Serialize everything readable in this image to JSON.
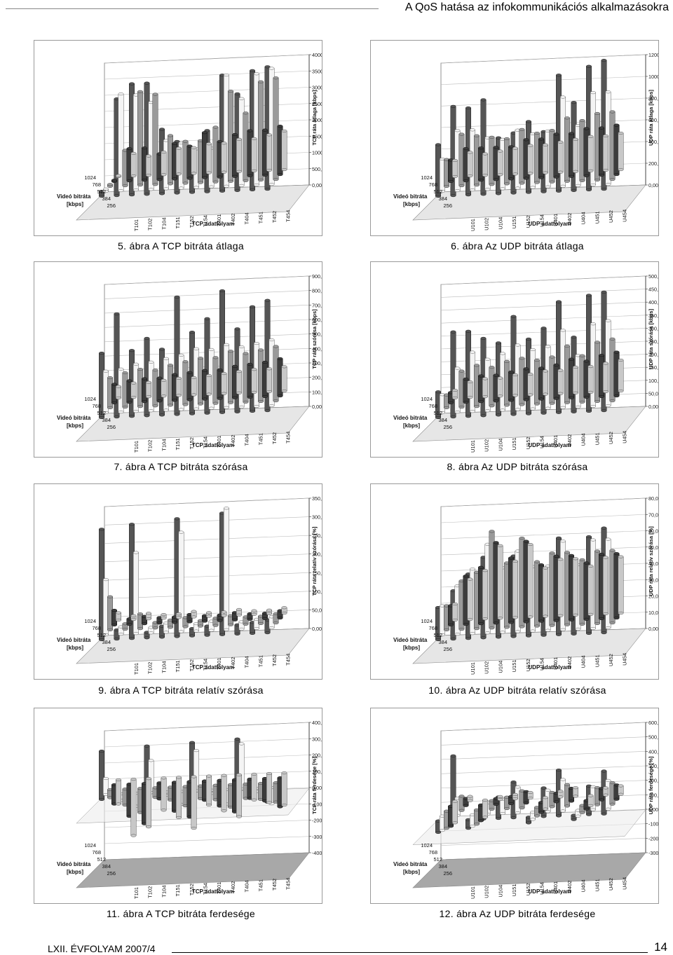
{
  "header": {
    "title": "A QoS hatása az infokommunikációs alkalmazásokra"
  },
  "footer": {
    "volume": "LXII. ÉVFOLYAM 2007/4",
    "page": "14"
  },
  "common": {
    "video_title": "Videó bitráta",
    "video_unit": "[kbps]",
    "bitrates": [
      "1024",
      "768",
      "512",
      "384",
      "256"
    ]
  },
  "charts": [
    {
      "caption": "5. ábra A TCP bitráta átlaga",
      "flows": [
        "T101",
        "T102",
        "T104",
        "T151",
        "T152",
        "T154",
        "T401",
        "T402",
        "T404",
        "T451",
        "T452",
        "T454"
      ],
      "flow_axis_label": "TCP adatfolyam",
      "value_axis_label": "TCP ráta átlaga [kbps]",
      "ticks": [
        "0,00",
        "500,00",
        "1000,00",
        "1500,00",
        "2000,00",
        "2500,00",
        "3000,00",
        "3500,00",
        "4000,00"
      ],
      "min": 0,
      "max": 4000,
      "has_negative": false,
      "values": [
        [
          150,
          3000,
          3450,
          3450,
          2000,
          1600,
          1100,
          1900,
          3600,
          3000,
          3700,
          3800
        ],
        [
          70,
          3000,
          2950,
          2700,
          1500,
          1400,
          1200,
          1200,
          3450,
          2700,
          3450,
          3600
        ],
        [
          60,
          1100,
          2900,
          2800,
          1500,
          1300,
          1300,
          1700,
          2800,
          2100,
          3050,
          3150
        ],
        [
          40,
          1000,
          1000,
          800,
          1100,
          1000,
          1400,
          1100,
          1300,
          1400,
          1400,
          1500
        ],
        [
          30,
          700,
          600,
          700,
          800,
          800,
          900,
          900,
          1000,
          1000,
          1100,
          1200
        ]
      ],
      "chart_data": {
        "type": "bar",
        "xlabel": "TCP adatfolyam",
        "ylabel": "TCP ráta átlaga [kbps]",
        "ylim": [
          0,
          4000
        ]
      }
    },
    {
      "caption": "6. ábra Az UDP bitráta átlaga",
      "flows": [
        "U101",
        "U102",
        "U104",
        "U151",
        "U152",
        "U154",
        "U401",
        "U402",
        "U404",
        "U451",
        "U452",
        "U454"
      ],
      "flow_axis_label": "UDP adatfolyam",
      "value_axis_label": "UDP ráta átlaga [kbps]",
      "ticks": [
        "0,00",
        "200,00",
        "400,00",
        "600,00",
        "800,00",
        "1000,00",
        "1200,00"
      ],
      "min": 0,
      "max": 1200,
      "has_negative": false,
      "values": [
        [
          480,
          830,
          810,
          880,
          520,
          560,
          660,
          560,
          1080,
          820,
          1150,
          1200
        ],
        [
          300,
          560,
          560,
          480,
          460,
          540,
          500,
          520,
          830,
          560,
          860,
          860
        ],
        [
          250,
          480,
          460,
          440,
          420,
          500,
          460,
          480,
          590,
          560,
          620,
          630
        ],
        [
          200,
          300,
          300,
          300,
          300,
          360,
          360,
          400,
          400,
          440,
          440,
          460
        ],
        [
          150,
          220,
          200,
          220,
          240,
          260,
          260,
          280,
          300,
          320,
          320,
          340
        ]
      ],
      "chart_data": {
        "type": "bar",
        "xlabel": "UDP adatfolyam",
        "ylabel": "UDP ráta átlaga [kbps]",
        "ylim": [
          0,
          1200
        ]
      }
    },
    {
      "caption": "7. ábra A TCP bitráta szórása",
      "flows": [
        "T101",
        "T102",
        "T104",
        "T151",
        "T152",
        "T154",
        "T401",
        "T402",
        "T404",
        "T451",
        "T452",
        "T454"
      ],
      "flow_axis_label": "TCP adatfolyam",
      "value_axis_label": "TCP ráta szórása [kbps]",
      "ticks": [
        "0,00",
        "100,00",
        "200,00",
        "300,00",
        "400,00",
        "500,00",
        "600,00",
        "700,00",
        "800,00",
        "900,00"
      ],
      "min": 0,
      "max": 900,
      "has_negative": false,
      "values": [
        [
          450,
          720,
          460,
          540,
          460,
          820,
          570,
          660,
          850,
          580,
          730,
          770
        ],
        [
          290,
          300,
          330,
          340,
          360,
          380,
          420,
          410,
          440,
          420,
          440,
          460
        ],
        [
          210,
          240,
          260,
          250,
          280,
          300,
          320,
          320,
          360,
          340,
          360,
          380
        ],
        [
          130,
          150,
          160,
          160,
          180,
          190,
          200,
          200,
          220,
          230,
          240,
          260
        ],
        [
          80,
          100,
          100,
          110,
          120,
          120,
          130,
          140,
          150,
          160,
          160,
          170
        ]
      ],
      "chart_data": {
        "type": "bar",
        "xlabel": "TCP adatfolyam",
        "ylabel": "TCP ráta szórása [kbps]",
        "ylim": [
          0,
          900
        ]
      }
    },
    {
      "caption": "8. ábra Az UDP bitráta szórása",
      "flows": [
        "U101",
        "U102",
        "U104",
        "U151",
        "U152",
        "U154",
        "U401",
        "U402",
        "U404",
        "U451",
        "U452",
        "U454"
      ],
      "flow_axis_label": "UDP adatfolyam",
      "value_axis_label": "UDP ráta szórása [kbps]",
      "ticks": [
        "0,00",
        "50,00",
        "100,00",
        "150,00",
        "200,00",
        "250,00",
        "300,00",
        "350,00",
        "400,00",
        "450,00",
        "500,00"
      ],
      "min": 0,
      "max": 500,
      "has_negative": false,
      "values": [
        [
          100,
          330,
          330,
          300,
          280,
          380,
          290,
          330,
          430,
          290,
          450,
          460
        ],
        [
          70,
          170,
          230,
          200,
          220,
          250,
          230,
          240,
          300,
          200,
          320,
          330
        ],
        [
          50,
          140,
          160,
          150,
          170,
          180,
          170,
          180,
          220,
          180,
          230,
          240
        ],
        [
          40,
          90,
          100,
          100,
          110,
          120,
          120,
          130,
          150,
          140,
          160,
          170
        ],
        [
          30,
          60,
          70,
          70,
          80,
          80,
          90,
          90,
          100,
          100,
          110,
          120
        ]
      ],
      "chart_data": {
        "type": "bar",
        "xlabel": "UDP adatfolyam",
        "ylabel": "UDP ráta szórása [kbps]",
        "ylim": [
          0,
          500
        ]
      }
    },
    {
      "caption": "9. ábra A TCP bitráta relatív szórása",
      "flows": [
        "T101",
        "T102",
        "T104",
        "T151",
        "T152",
        "T154",
        "T401",
        "T402",
        "T404",
        "T451",
        "T452",
        "T454"
      ],
      "flow_axis_label": "TCP adatfolyam",
      "value_axis_label": "TCP ráta relatív szórása [%]",
      "ticks": [
        "0,00%",
        "50,00%",
        "100,00%",
        "150,00%",
        "200,00%",
        "250,00%",
        "300,00%",
        "350,00%"
      ],
      "min": 0,
      "max": 350,
      "has_negative": false,
      "values": [
        [
          300,
          25,
          310,
          15,
          30,
          320,
          20,
          25,
          330,
          25,
          30,
          35
        ],
        [
          150,
          20,
          220,
          15,
          25,
          270,
          20,
          25,
          330,
          20,
          25,
          30
        ],
        [
          90,
          15,
          40,
          15,
          20,
          25,
          15,
          20,
          25,
          20,
          20,
          25
        ],
        [
          40,
          15,
          20,
          15,
          15,
          20,
          15,
          15,
          20,
          15,
          15,
          20
        ],
        [
          20,
          10,
          15,
          10,
          10,
          15,
          10,
          10,
          15,
          10,
          10,
          15
        ]
      ],
      "chart_data": {
        "type": "bar",
        "xlabel": "TCP adatfolyam",
        "ylabel": "TCP ráta relatív szórása [%]",
        "ylim": [
          0,
          350
        ]
      }
    },
    {
      "caption": "10. ábra Az UDP bitráta relatív szórása",
      "flows": [
        "U101",
        "U102",
        "U104",
        "U151",
        "U152",
        "U154",
        "U401",
        "U402",
        "U404",
        "U451",
        "U452",
        "U454"
      ],
      "flow_axis_label": "UDP adatfolyam",
      "value_axis_label": "UDP ráta relatív szórása [%]",
      "ticks": [
        "0,00%",
        "10,00%",
        "20,00%",
        "30,00%",
        "40,00%",
        "50,00%",
        "60,00%",
        "70,00%",
        "80,00%"
      ],
      "min": 0,
      "max": 80,
      "has_negative": false,
      "values": [
        [
          20,
          30,
          40,
          50,
          30,
          50,
          40,
          40,
          60,
          40,
          60,
          65
        ],
        [
          18,
          30,
          40,
          55,
          40,
          50,
          40,
          40,
          55,
          40,
          55,
          55
        ],
        [
          15,
          30,
          35,
          60,
          40,
          55,
          40,
          45,
          45,
          40,
          45,
          45
        ],
        [
          12,
          30,
          35,
          50,
          40,
          50,
          35,
          40,
          40,
          35,
          40,
          40
        ],
        [
          10,
          25,
          30,
          45,
          35,
          45,
          30,
          35,
          35,
          30,
          35,
          35
        ]
      ],
      "chart_data": {
        "type": "bar",
        "xlabel": "UDP adatfolyam",
        "ylabel": "UDP ráta relatív szórása [%]",
        "ylim": [
          0,
          80
        ]
      }
    },
    {
      "caption": "11. ábra A TCP bitráta ferdesége",
      "flows": [
        "T101",
        "T102",
        "T104",
        "T151",
        "T152",
        "T154",
        "T401",
        "T402",
        "T404",
        "T451",
        "T452",
        "T454"
      ],
      "flow_axis_label": "TCP adatfolyam",
      "value_axis_label": "TCP ráta ferdesége [%]",
      "ticks": [
        "-400,00%",
        "-300,00%",
        "-200,00%",
        "-100,00%",
        "0,00%",
        "100,00%",
        "200,00%",
        "300,00%",
        "400,00%"
      ],
      "min": -400,
      "max": 400,
      "has_negative": true,
      "values": [
        [
          300,
          10,
          -50,
          320,
          10,
          -60,
          330,
          10,
          -60,
          340,
          10,
          -60
        ],
        [
          100,
          -40,
          -80,
          200,
          -20,
          -80,
          250,
          -20,
          -90,
          280,
          -20,
          -100
        ],
        [
          -50,
          -100,
          -150,
          -60,
          -80,
          -120,
          -80,
          -90,
          -140,
          -90,
          -100,
          -120
        ],
        [
          -120,
          -200,
          -250,
          -100,
          -180,
          -220,
          -120,
          -160,
          -200,
          -120,
          -140,
          -180
        ],
        [
          -150,
          -350,
          -300,
          -200,
          -250,
          -320,
          -180,
          -220,
          -260,
          -160,
          -180,
          -200
        ]
      ],
      "chart_data": {
        "type": "bar",
        "xlabel": "TCP adatfolyam",
        "ylabel": "TCP ráta ferdesége [%]",
        "ylim": [
          -400,
          400
        ]
      }
    },
    {
      "caption": "12. ábra Az UDP bitráta ferdesége",
      "flows": [
        "U101",
        "U102",
        "U104",
        "U151",
        "U152",
        "U154",
        "U401",
        "U402",
        "U404",
        "U451",
        "U452",
        "U454"
      ],
      "flow_axis_label": "UDP adatfolyam",
      "value_axis_label": "UDP ráta ferdesége [%]",
      "ticks": [
        "-300,00%",
        "-200,00%",
        "-100,00%",
        "0,00%",
        "100,00%",
        "200,00%",
        "300,00%",
        "400,00%",
        "500,00%",
        "600,00%"
      ],
      "min": -300,
      "max": 600,
      "has_negative": true,
      "values": [
        [
          -80,
          450,
          -60,
          100,
          150,
          250,
          -40,
          200,
          320,
          -30,
          200,
          300
        ],
        [
          -100,
          120,
          -80,
          80,
          100,
          180,
          -50,
          150,
          220,
          -40,
          160,
          200
        ],
        [
          -120,
          100,
          -100,
          60,
          80,
          120,
          -60,
          100,
          150,
          -50,
          120,
          150
        ],
        [
          -140,
          50,
          -110,
          40,
          50,
          80,
          -70,
          60,
          90,
          -60,
          80,
          100
        ],
        [
          -150,
          30,
          -120,
          20,
          30,
          40,
          -80,
          40,
          60,
          -70,
          50,
          60
        ]
      ],
      "chart_data": {
        "type": "bar",
        "xlabel": "UDP adatfolyam",
        "ylabel": "UDP ráta ferdesége [%]",
        "ylim": [
          -300,
          600
        ]
      }
    }
  ]
}
